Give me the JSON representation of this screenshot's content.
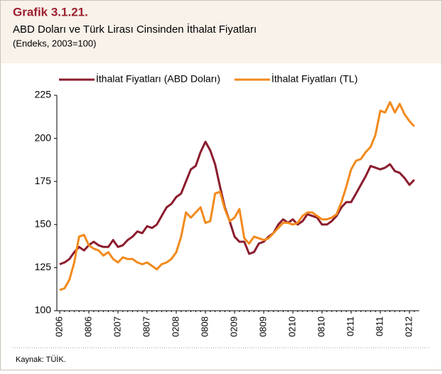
{
  "chart_data": {
    "type": "line",
    "title": "Grafik 3.1.21.",
    "subtitle": "ABD Doları ve Türk Lirası Cinsinden İthalat Fiyatları",
    "note": "(Endeks, 2003=100)",
    "source": "Kaynak: TÜİK.",
    "categories": [
      "0206",
      null,
      null,
      null,
      null,
      null,
      "0806",
      null,
      null,
      null,
      null,
      null,
      "0207",
      null,
      null,
      null,
      null,
      null,
      "0807",
      null,
      null,
      null,
      null,
      null,
      "0208",
      null,
      null,
      null,
      null,
      null,
      "0808",
      null,
      null,
      null,
      null,
      null,
      "0209",
      null,
      null,
      null,
      null,
      null,
      "0809",
      null,
      null,
      null,
      null,
      null,
      "0210",
      null,
      null,
      null,
      null,
      null,
      "0810",
      null,
      null,
      null,
      null,
      null,
      "0211",
      null,
      null,
      null,
      null,
      null,
      "0811",
      null,
      null,
      null,
      null,
      null,
      "0212",
      null
    ],
    "series": [
      {
        "name": "İthalat Fiyatları (ABD Doları)",
        "color": "#8b1c2e",
        "values": [
          127,
          128,
          130,
          134,
          137,
          135,
          138,
          140,
          138,
          137,
          137,
          141,
          137,
          138,
          141,
          143,
          146,
          145,
          149,
          148,
          150,
          155,
          160,
          162,
          166,
          168,
          175,
          182,
          184,
          192,
          198,
          193,
          185,
          172,
          160,
          152,
          143,
          140,
          140,
          133,
          134,
          139,
          140,
          143,
          145,
          150,
          153,
          151,
          153,
          150,
          152,
          156,
          155,
          154,
          150,
          150,
          152,
          155,
          160,
          163,
          163,
          168,
          173,
          178,
          184,
          183,
          182,
          183,
          185,
          181,
          180,
          177,
          173,
          176
        ]
      },
      {
        "name": "İthalat Fiyatları (TL)",
        "color": "#f28a1c",
        "values": [
          112,
          113,
          118,
          128,
          143,
          144,
          138,
          136,
          135,
          132,
          134,
          130,
          128,
          131,
          130,
          130,
          128,
          127,
          128,
          126,
          124,
          127,
          128,
          130,
          134,
          143,
          157,
          154,
          157,
          160,
          151,
          152,
          168,
          169,
          159,
          152,
          154,
          159,
          142,
          139,
          143,
          142,
          141,
          142,
          145,
          148,
          151,
          151,
          150,
          151,
          155,
          157,
          157,
          155,
          153,
          153,
          154,
          156,
          163,
          172,
          182,
          187,
          188,
          192,
          195,
          202,
          216,
          215,
          221,
          215,
          220,
          214,
          210,
          207
        ]
      }
    ],
    "ylim": [
      100,
      225
    ],
    "yticks": [
      100,
      125,
      150,
      175,
      200,
      225
    ],
    "legend": "top"
  }
}
